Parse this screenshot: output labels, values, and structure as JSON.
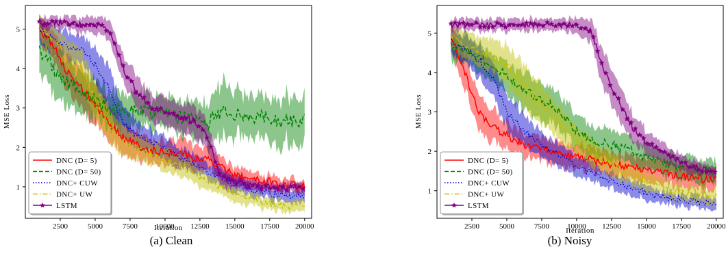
{
  "chart_data": [
    {
      "type": "line",
      "caption": "(a) Clean",
      "xlabel": "Iteration",
      "ylabel": "MSE Loss",
      "xlim": [
        0,
        20500
      ],
      "ylim": [
        0.2,
        5.6
      ],
      "xticks": [
        2500,
        5000,
        7500,
        10000,
        12500,
        15000,
        17500,
        20000
      ],
      "yticks": [
        1,
        2,
        3,
        4,
        5
      ],
      "legend_position": "lower-left",
      "x": [
        1000,
        2000,
        3000,
        4000,
        5000,
        6000,
        7000,
        8000,
        9000,
        10000,
        11000,
        12000,
        13000,
        14000,
        15000,
        16000,
        17000,
        18000,
        19000,
        20000
      ],
      "series": [
        {
          "name": "DNC (D= 5)",
          "color": "#ff0000",
          "dash": "solid",
          "marker": "none",
          "noise": 0.1,
          "values": [
            5.0,
            4.6,
            3.9,
            3.5,
            3.05,
            2.6,
            2.25,
            2.05,
            1.95,
            1.85,
            1.85,
            1.75,
            1.7,
            1.5,
            1.3,
            1.2,
            1.15,
            1.1,
            1.05,
            1.0
          ],
          "band": [
            0.3,
            0.35,
            0.45,
            0.5,
            0.5,
            0.45,
            0.4,
            0.35,
            0.3,
            0.3,
            0.35,
            0.35,
            0.3,
            0.25,
            0.2,
            0.2,
            0.15,
            0.15,
            0.15,
            0.15
          ]
        },
        {
          "name": "DNC (D= 50)",
          "color": "#008000",
          "dash": "dashed",
          "marker": "none",
          "noise": 0.18,
          "values": [
            4.5,
            4.0,
            3.65,
            3.4,
            3.2,
            3.0,
            2.95,
            2.9,
            2.9,
            2.8,
            2.75,
            2.7,
            2.6,
            2.9,
            2.85,
            2.8,
            2.75,
            2.7,
            2.65,
            2.7
          ],
          "band": [
            0.5,
            0.6,
            0.6,
            0.55,
            0.5,
            0.45,
            0.45,
            0.4,
            0.4,
            0.4,
            0.4,
            0.45,
            0.5,
            0.7,
            0.6,
            0.55,
            0.5,
            0.55,
            0.6,
            0.65
          ]
        },
        {
          "name": "DNC+ CUW",
          "color": "#0000cc",
          "dash": "dotted",
          "marker": "none",
          "noise": 0.08,
          "values": [
            5.0,
            4.75,
            4.55,
            4.5,
            4.1,
            3.5,
            2.6,
            2.3,
            2.15,
            1.95,
            1.75,
            1.55,
            1.4,
            1.25,
            1.05,
            0.95,
            0.85,
            0.8,
            0.75,
            0.7
          ],
          "band": [
            0.3,
            0.35,
            0.35,
            0.35,
            0.45,
            0.5,
            0.45,
            0.35,
            0.3,
            0.3,
            0.25,
            0.25,
            0.2,
            0.2,
            0.2,
            0.15,
            0.15,
            0.15,
            0.15,
            0.15
          ]
        },
        {
          "name": "DNC+ UW",
          "color": "#bfbf00",
          "dash": "dashdot",
          "marker": "none",
          "noise": 0.08,
          "values": [
            5.0,
            4.7,
            4.4,
            4.05,
            3.2,
            2.5,
            2.2,
            2.0,
            1.85,
            1.7,
            1.55,
            1.35,
            1.15,
            1.0,
            0.8,
            0.7,
            0.6,
            0.55,
            0.5,
            0.48
          ],
          "band": [
            0.3,
            0.35,
            0.4,
            0.45,
            0.45,
            0.4,
            0.35,
            0.3,
            0.3,
            0.3,
            0.25,
            0.25,
            0.2,
            0.2,
            0.2,
            0.15,
            0.15,
            0.15,
            0.15,
            0.15
          ]
        },
        {
          "name": "LSTM",
          "color": "#800080",
          "dash": "solid",
          "marker": "star",
          "noise": 0.08,
          "values": [
            5.15,
            5.15,
            5.15,
            5.1,
            5.1,
            5.0,
            4.0,
            3.4,
            3.0,
            2.9,
            2.75,
            2.7,
            2.3,
            1.3,
            1.1,
            1.05,
            1.0,
            1.0,
            0.98,
            0.95
          ],
          "band": [
            0.15,
            0.15,
            0.15,
            0.2,
            0.2,
            0.25,
            0.35,
            0.4,
            0.35,
            0.35,
            0.35,
            0.4,
            0.35,
            0.25,
            0.15,
            0.15,
            0.12,
            0.12,
            0.12,
            0.12
          ]
        }
      ]
    },
    {
      "type": "line",
      "caption": "(b) Noisy",
      "xlabel": "Iteration",
      "ylabel": "MSE Loss",
      "xlim": [
        0,
        20500
      ],
      "ylim": [
        0.3,
        5.7
      ],
      "xticks": [
        2500,
        5000,
        7500,
        10000,
        12500,
        15000,
        17500,
        20000
      ],
      "yticks": [
        1,
        2,
        3,
        4,
        5
      ],
      "legend_position": "lower-left",
      "x": [
        1000,
        2000,
        3000,
        4000,
        5000,
        6000,
        7000,
        8000,
        9000,
        10000,
        11000,
        12000,
        13000,
        14000,
        15000,
        16000,
        17000,
        18000,
        19000,
        20000
      ],
      "series": [
        {
          "name": "DNC (D= 5)",
          "color": "#ff0000",
          "dash": "solid",
          "marker": "none",
          "noise": 0.1,
          "values": [
            4.9,
            4.0,
            3.0,
            2.6,
            2.4,
            2.2,
            2.1,
            2.0,
            1.9,
            1.85,
            1.8,
            1.7,
            1.65,
            1.6,
            1.55,
            1.45,
            1.4,
            1.35,
            1.3,
            1.3
          ],
          "band": [
            0.3,
            0.45,
            0.45,
            0.4,
            0.35,
            0.3,
            0.3,
            0.3,
            0.3,
            0.3,
            0.3,
            0.3,
            0.3,
            0.3,
            0.3,
            0.3,
            0.3,
            0.3,
            0.3,
            0.3
          ]
        },
        {
          "name": "DNC (D= 50)",
          "color": "#008000",
          "dash": "dashed",
          "marker": "none",
          "noise": 0.12,
          "values": [
            4.7,
            4.55,
            4.35,
            4.2,
            3.9,
            3.6,
            3.4,
            3.2,
            2.9,
            2.5,
            2.3,
            2.2,
            2.1,
            2.0,
            1.85,
            1.75,
            1.6,
            1.55,
            1.5,
            1.5
          ],
          "band": [
            0.35,
            0.35,
            0.35,
            0.35,
            0.4,
            0.45,
            0.45,
            0.45,
            0.45,
            0.4,
            0.4,
            0.4,
            0.35,
            0.35,
            0.35,
            0.3,
            0.3,
            0.3,
            0.3,
            0.3
          ]
        },
        {
          "name": "DNC+ CUW",
          "color": "#0000cc",
          "dash": "dotted",
          "marker": "none",
          "noise": 0.08,
          "values": [
            4.8,
            4.6,
            4.3,
            3.9,
            3.0,
            2.6,
            2.3,
            2.05,
            1.85,
            1.65,
            1.45,
            1.3,
            1.2,
            1.05,
            0.95,
            0.85,
            0.8,
            0.75,
            0.7,
            0.65
          ],
          "band": [
            0.3,
            0.35,
            0.4,
            0.45,
            0.45,
            0.4,
            0.35,
            0.3,
            0.3,
            0.25,
            0.25,
            0.2,
            0.2,
            0.2,
            0.2,
            0.15,
            0.15,
            0.15,
            0.15,
            0.15
          ]
        },
        {
          "name": "DNC+ UW",
          "color": "#bfbf00",
          "dash": "dashdot",
          "marker": "none",
          "noise": 0.09,
          "values": [
            4.9,
            4.7,
            4.55,
            4.4,
            4.2,
            3.8,
            3.4,
            3.0,
            2.6,
            2.3,
            2.0,
            1.75,
            1.55,
            1.35,
            1.2,
            1.1,
            1.0,
            0.95,
            0.9,
            0.85
          ],
          "band": [
            0.3,
            0.35,
            0.4,
            0.4,
            0.45,
            0.5,
            0.5,
            0.45,
            0.4,
            0.35,
            0.35,
            0.3,
            0.3,
            0.25,
            0.25,
            0.2,
            0.2,
            0.2,
            0.2,
            0.2
          ]
        },
        {
          "name": "LSTM",
          "color": "#800080",
          "dash": "solid",
          "marker": "star",
          "noise": 0.07,
          "values": [
            5.2,
            5.2,
            5.2,
            5.2,
            5.2,
            5.2,
            5.2,
            5.2,
            5.2,
            5.2,
            5.1,
            4.0,
            3.3,
            2.6,
            2.2,
            2.0,
            1.8,
            1.65,
            1.55,
            1.5
          ],
          "band": [
            0.15,
            0.15,
            0.15,
            0.15,
            0.15,
            0.15,
            0.15,
            0.15,
            0.15,
            0.2,
            0.3,
            0.45,
            0.45,
            0.35,
            0.3,
            0.25,
            0.2,
            0.2,
            0.15,
            0.15
          ]
        }
      ]
    }
  ]
}
